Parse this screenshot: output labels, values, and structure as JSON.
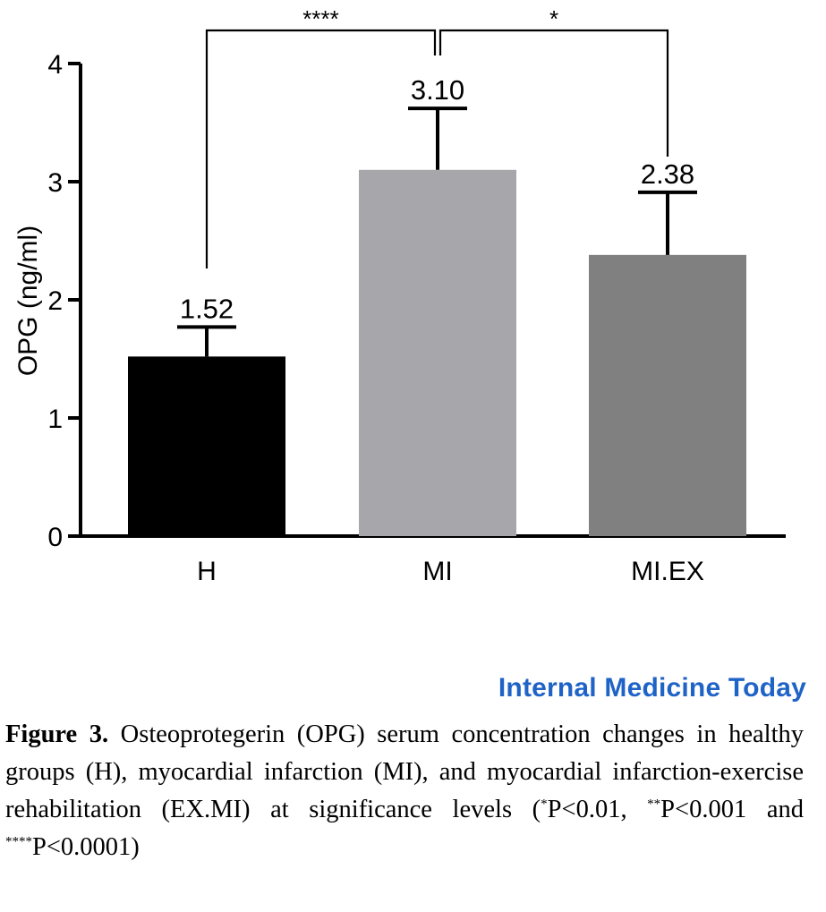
{
  "chart_data": {
    "type": "bar",
    "categories": [
      "H",
      "MI",
      "MI.EX"
    ],
    "values": [
      1.52,
      3.1,
      2.38
    ],
    "value_labels": [
      "1.52",
      "3.10",
      "2.38"
    ],
    "error_upper": [
      1.77,
      3.62,
      2.91
    ],
    "ylabel": "OPG (ng/ml)",
    "ylim": [
      0,
      4
    ],
    "yticks": [
      "0",
      "1",
      "2",
      "3",
      "4"
    ],
    "colors": [
      "#000000",
      "#a7a7ab",
      "#808080"
    ],
    "significance": [
      {
        "from": "H",
        "to": "MI",
        "label": "****"
      },
      {
        "from": "MI",
        "to": "MI.EX",
        "label": "*"
      }
    ]
  },
  "brand": "Internal Medicine Today",
  "caption": {
    "figure_label": "Figure 3.",
    "text_1": " Osteoprotegerin (OPG) serum concentration changes in healthy groups (H), myocardial infarction (MI), and myocardial infarction-exercise rehabilitation (EX.MI) at significance levels (",
    "sup_1": "*",
    "text_2": "P<0.01, ",
    "sup_2": "**",
    "text_3": "P<0.001 and ",
    "sup_3": "****",
    "text_4": "P<0.0001)"
  }
}
